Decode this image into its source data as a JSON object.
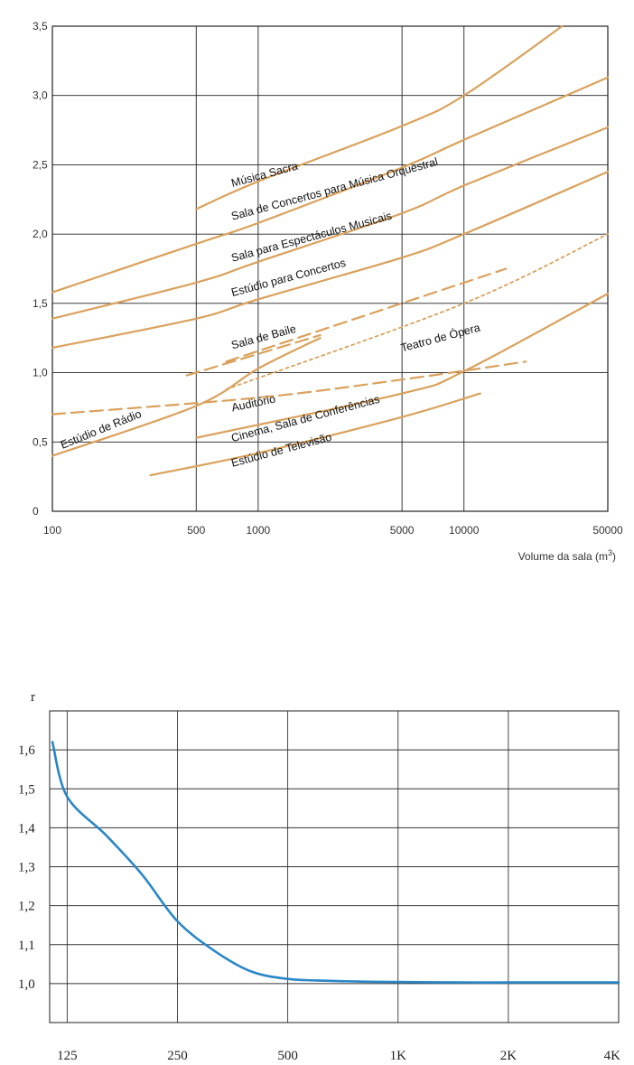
{
  "chart_data": [
    {
      "type": "line",
      "xscale": "log",
      "xlim": [
        100,
        50000
      ],
      "ylim": [
        0,
        3.5
      ],
      "grid": true,
      "xlabel": "Volume da sala (m",
      "xlabel_sup": "3",
      "xlabel_close": ")",
      "x_ticks": [
        100,
        500,
        1000,
        5000,
        10000,
        50000
      ],
      "x_tick_labels": [
        "100",
        "500",
        "1000",
        "5000",
        "10000",
        "50000"
      ],
      "y_ticks": [
        0,
        0.5,
        1.0,
        1.5,
        2.0,
        2.5,
        3.0,
        3.5
      ],
      "y_tick_labels": [
        "0",
        "0,5",
        "1,0",
        "1,5",
        "2,0",
        "2,5",
        "3,0",
        "3,5"
      ],
      "colors": {
        "line": "#d9a15c",
        "dashed": "#d9a15c",
        "grid": "#222222"
      },
      "series": [
        {
          "name": "Música Sacra",
          "style": "solid",
          "x": [
            500,
            1000,
            5000,
            10000,
            30000
          ],
          "y": [
            2.18,
            2.38,
            2.78,
            3.0,
            3.5
          ],
          "label_at": [
            750,
            2.34
          ],
          "label_angle": -15
        },
        {
          "name": "Sala de Concertos para Música Orquestral",
          "style": "solid",
          "x": [
            100,
            500,
            1000,
            5000,
            10000,
            50000
          ],
          "y": [
            1.58,
            1.93,
            2.08,
            2.48,
            2.68,
            3.13
          ],
          "label_at": [
            750,
            2.1
          ],
          "label_angle": -15
        },
        {
          "name": "Sala para Espectáculos Musicais",
          "style": "solid",
          "x": [
            100,
            500,
            1000,
            5000,
            10000,
            50000
          ],
          "y": [
            1.39,
            1.65,
            1.8,
            2.15,
            2.35,
            2.77
          ],
          "label_at": [
            750,
            1.8
          ],
          "label_angle": -15
        },
        {
          "name": "Estúdio para Concertos",
          "style": "solid",
          "x": [
            100,
            500,
            1000,
            5000,
            10000,
            50000
          ],
          "y": [
            1.18,
            1.39,
            1.53,
            1.83,
            2.0,
            2.45
          ],
          "label_at": [
            750,
            1.55
          ],
          "label_angle": -15
        },
        {
          "name": "Sala de Baile",
          "style": "dashed",
          "x": [
            450,
            2000
          ],
          "y": [
            0.98,
            1.27
          ],
          "label_at": [
            750,
            1.17
          ],
          "label_angle": -15
        },
        {
          "name": "",
          "style": "dashed",
          "x": [
            700,
            16000
          ],
          "y": [
            1.08,
            1.75
          ]
        },
        {
          "name": "Teatro de Ópera",
          "style": "dotted",
          "x": [
            700,
            10000,
            50000
          ],
          "y": [
            0.88,
            1.5,
            2.0
          ],
          "label_at": [
            5000,
            1.15
          ],
          "label_angle": -15
        },
        {
          "name": "Estúdio de Rádio",
          "style": "solid",
          "x": [
            100,
            500,
            1000,
            2000
          ],
          "y": [
            0.4,
            0.76,
            1.03,
            1.25
          ],
          "label_at": [
            112,
            0.45
          ],
          "label_angle": -22
        },
        {
          "name": "Auditório",
          "style": "dashed",
          "x": [
            100,
            1000,
            5000,
            20000
          ],
          "y": [
            0.7,
            0.82,
            0.95,
            1.08
          ],
          "label_at": [
            750,
            0.72
          ],
          "label_angle": -12
        },
        {
          "name": "Cinema, Sala de Conferências",
          "style": "solid",
          "x": [
            500,
            5000,
            10000,
            50000
          ],
          "y": [
            0.53,
            0.85,
            1.01,
            1.57
          ],
          "label_at": [
            750,
            0.5
          ],
          "label_angle": -15
        },
        {
          "name": "Estúdio de Televisão",
          "style": "solid",
          "x": [
            300,
            1000,
            5000,
            12000
          ],
          "y": [
            0.26,
            0.42,
            0.68,
            0.85
          ],
          "label_at": [
            750,
            0.32
          ],
          "label_angle": -15
        }
      ]
    },
    {
      "type": "line",
      "xscale": "log",
      "xlim": [
        112,
        4000
      ],
      "ylim": [
        0.9,
        1.7
      ],
      "grid": true,
      "ylabel": "r",
      "x_ticks": [
        125,
        250,
        500,
        1000,
        2000,
        4000
      ],
      "x_tick_labels": [
        "125",
        "250",
        "500",
        "1K",
        "2K",
        "4K"
      ],
      "y_ticks": [
        1.0,
        1.1,
        1.2,
        1.3,
        1.4,
        1.5,
        1.6
      ],
      "y_tick_labels": [
        "1,0",
        "1,1",
        "1,2",
        "1,3",
        "1,4",
        "1,5",
        "1,6"
      ],
      "colors": {
        "line": "#2a86c7",
        "grid": "#333333"
      },
      "series": [
        {
          "x": [
            114,
            125,
            160,
            200,
            250,
            320,
            400,
            500,
            600,
            800,
            1000,
            1500,
            2000,
            3000,
            4000
          ],
          "y": [
            1.62,
            1.48,
            1.38,
            1.28,
            1.16,
            1.08,
            1.03,
            1.012,
            1.008,
            1.005,
            1.004,
            1.003,
            1.003,
            1.003,
            1.003
          ]
        }
      ]
    }
  ]
}
